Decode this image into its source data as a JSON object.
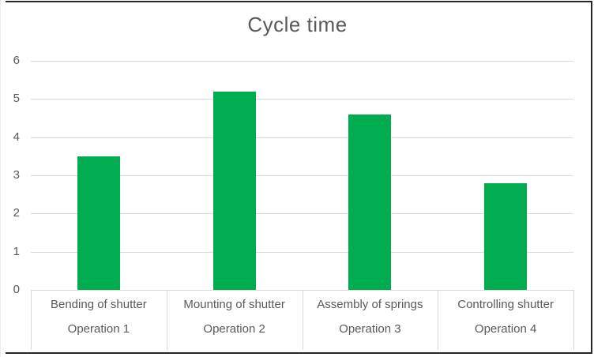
{
  "chart_data": {
    "type": "bar",
    "title": "Cycle time",
    "categories": [
      "Bending of shutter",
      "Mounting of shutter",
      "Assembly of springs",
      "Controlling shutter"
    ],
    "category_sublabels": [
      "Operation 1",
      "Operation 2",
      "Operation 3",
      "Operation 4"
    ],
    "values": [
      3.5,
      5.2,
      4.6,
      2.8
    ],
    "xlabel": "",
    "ylabel": "",
    "ylim": [
      0,
      6
    ],
    "yticks": [
      0,
      1,
      2,
      3,
      4,
      5,
      6
    ],
    "grid": true,
    "legend": "none"
  },
  "colors": {
    "bar": "#00AC50",
    "title_text": "#595959",
    "axis_text": "#595959",
    "gridline": "#D9D9D9",
    "divider": "#D9D9D9",
    "frame_border": "#262626",
    "background": "#FFFFFF"
  }
}
